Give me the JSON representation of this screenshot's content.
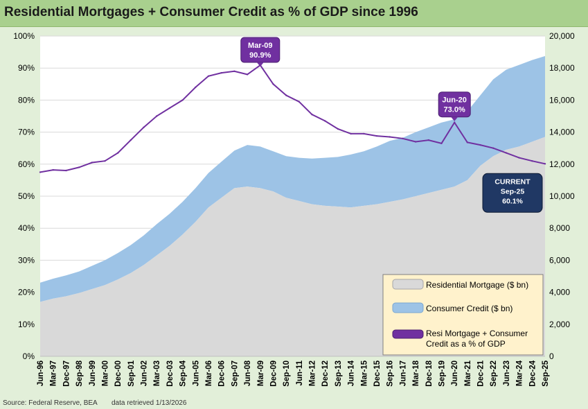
{
  "page_title": "Residential Mortgages + Consumer Credit as % of GDP since 1996",
  "footer": {
    "source": "Source: Federal Reserve, BEA",
    "retrieved": "data retrieved 1/13/2026"
  },
  "chart_data": {
    "type": "area",
    "title": "Residential Mortgages + Consumer Credit as % of GDP since 1996",
    "x": [
      "Jun-96",
      "Mar-97",
      "Dec-97",
      "Sep-98",
      "Jun-99",
      "Mar-00",
      "Dec-00",
      "Sep-01",
      "Jun-02",
      "Mar-03",
      "Dec-03",
      "Sep-04",
      "Jun-05",
      "Mar-06",
      "Dec-06",
      "Sep-07",
      "Jun-08",
      "Mar-09",
      "Dec-09",
      "Sep-10",
      "Jun-11",
      "Mar-12",
      "Dec-12",
      "Sep-13",
      "Jun-14",
      "Mar-15",
      "Dec-15",
      "Sep-16",
      "Jun-17",
      "Mar-18",
      "Dec-18",
      "Sep-19",
      "Jun-20",
      "Mar-21",
      "Dec-21",
      "Sep-22",
      "Jun-23",
      "Mar-24",
      "Dec-24",
      "Sep-25"
    ],
    "x_tick_labels": [
      "Jun-96",
      "Mar-97",
      "Dec-97",
      "Sep-98",
      "Jun-99",
      "Mar-00",
      "Dec-00",
      "Sep-01",
      "Jun-02",
      "Mar-03",
      "Dec-03",
      "Sep-04",
      "Jun-05",
      "Mar-06",
      "Dec-06",
      "Sep-07",
      "Jun-08",
      "Mar-09",
      "Dec-09",
      "Sep-10",
      "Jun-11",
      "Mar-12",
      "Dec-12",
      "Sep-13",
      "Jun-14",
      "Mar-15",
      "Dec-15",
      "Sep-16",
      "Jun-17",
      "Mar-18",
      "Dec-18",
      "Sep-19",
      "Jun-20",
      "Mar-21",
      "Dec-21",
      "Sep-22",
      "Jun-23",
      "Mar-24",
      "Dec-24",
      "Sep-25"
    ],
    "y_left": {
      "min": 0,
      "max": 100,
      "ticks": [
        "0%",
        "10%",
        "20%",
        "30%",
        "40%",
        "50%",
        "60%",
        "70%",
        "80%",
        "90%",
        "100%"
      ]
    },
    "y_right": {
      "min": 0,
      "max": 20000,
      "ticks": [
        "0",
        "2,000",
        "4,000",
        "6,000",
        "8,000",
        "10,000",
        "12,000",
        "14,000",
        "16,000",
        "18,000",
        "20,000"
      ]
    },
    "grid": true,
    "series": [
      {
        "name": "Residential Mortgage ($ bn)",
        "axis": "right",
        "kind": "area",
        "color": "#d9d9d9",
        "values": [
          3400,
          3600,
          3750,
          3950,
          4200,
          4450,
          4800,
          5200,
          5700,
          6300,
          6900,
          7600,
          8400,
          9300,
          9900,
          10500,
          10600,
          10500,
          10300,
          9900,
          9700,
          9500,
          9400,
          9350,
          9300,
          9400,
          9500,
          9650,
          9800,
          10000,
          10200,
          10400,
          10600,
          11000,
          11900,
          12500,
          12900,
          13100,
          13400,
          13700
        ]
      },
      {
        "name": "Consumer Credit ($ bn)",
        "axis": "right",
        "kind": "area_stacked",
        "color": "#9dc3e6",
        "values": [
          1200,
          1250,
          1300,
          1350,
          1450,
          1550,
          1650,
          1750,
          1850,
          1950,
          2000,
          2050,
          2100,
          2150,
          2250,
          2350,
          2600,
          2600,
          2500,
          2600,
          2700,
          2850,
          3000,
          3100,
          3300,
          3400,
          3600,
          3800,
          3850,
          4000,
          4100,
          4200,
          4200,
          4300,
          4400,
          4800,
          5000,
          5100,
          5100,
          5050
        ]
      },
      {
        "name": "Resi Mortgage + Consumer Credit as a % of GDP",
        "axis": "left",
        "kind": "line",
        "color": "#7030a0",
        "values": [
          57.5,
          58.2,
          58.0,
          59.0,
          60.5,
          61.0,
          63.5,
          67.5,
          71.5,
          75.0,
          77.5,
          80.0,
          84.0,
          87.5,
          88.5,
          89.0,
          88.0,
          90.9,
          85.0,
          81.5,
          79.5,
          75.5,
          73.5,
          71.0,
          69.5,
          69.5,
          68.8,
          68.5,
          68.0,
          67.0,
          67.5,
          66.5,
          73.0,
          66.8,
          66.0,
          65.0,
          63.5,
          62.0,
          61.0,
          60.1
        ]
      }
    ],
    "annotations": [
      {
        "line1": "Mar-09",
        "line2": "90.9%",
        "at": "Mar-09"
      },
      {
        "line1": "Jun-20",
        "line2": "73.0%",
        "at": "Jun-20"
      },
      {
        "line0": "CURRENT",
        "line1": "Sep-25",
        "line2": "60.1%",
        "at": "Sep-25"
      }
    ],
    "legend": {
      "placement": "bottom-right",
      "entries": [
        "Residential Mortgage ($ bn)",
        "Consumer Credit ($ bn)",
        "Resi Mortgage + Consumer Credit as a % of GDP"
      ],
      "line_label_row1": "Resi Mortgage + Consumer",
      "line_label_row2": "Credit as a % of GDP"
    }
  }
}
